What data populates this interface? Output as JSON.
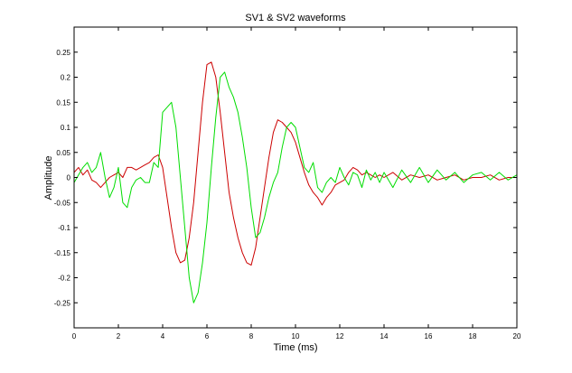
{
  "chart_data": {
    "type": "line",
    "title": "SV1 & SV2 waveforms",
    "xlabel": "Time (ms)",
    "ylabel": "Amplitude",
    "xlim": [
      0,
      20
    ],
    "ylim": [
      -0.3,
      0.3
    ],
    "grid": false,
    "xticks": [
      0,
      2,
      4,
      6,
      8,
      10,
      12,
      14,
      16,
      18,
      20
    ],
    "xtick_labels": [
      "0",
      "2",
      "4",
      "6",
      "8",
      "10",
      "12",
      "14",
      "16",
      "18",
      "20"
    ],
    "yticks": [
      0.25,
      0.2,
      0.15,
      0.1,
      0.05,
      0,
      -0.05,
      -0.1,
      -0.15,
      -0.2,
      -0.25
    ],
    "ytick_labels": [
      "0.25",
      "0.2",
      "0.15",
      "0.1",
      "0.05",
      "0",
      "-0.05",
      "-0.1",
      "-0.15",
      "-0.2",
      "-0.25"
    ],
    "colors": {
      "series_red": "#cc0000",
      "series_green": "#00dd00",
      "axes": "#000000"
    },
    "series": [
      {
        "color": "#cc0000",
        "x": [
          0,
          0.2,
          0.4,
          0.6,
          0.8,
          1.0,
          1.2,
          1.4,
          1.6,
          1.8,
          2.0,
          2.2,
          2.4,
          2.6,
          2.8,
          3.0,
          3.2,
          3.4,
          3.6,
          3.8,
          4.0,
          4.2,
          4.4,
          4.6,
          4.8,
          5.0,
          5.2,
          5.4,
          5.6,
          5.8,
          6.0,
          6.2,
          6.4,
          6.6,
          6.8,
          7.0,
          7.2,
          7.4,
          7.6,
          7.8,
          8.0,
          8.2,
          8.4,
          8.6,
          8.8,
          9.0,
          9.2,
          9.4,
          9.6,
          9.8,
          10.0,
          10.2,
          10.4,
          10.6,
          10.8,
          11.0,
          11.2,
          11.4,
          11.6,
          11.8,
          12.0,
          12.2,
          12.4,
          12.6,
          12.8,
          13.0,
          13.2,
          13.4,
          13.6,
          13.8,
          14.0,
          14.4,
          14.8,
          15.2,
          15.6,
          16.0,
          16.4,
          16.8,
          17.2,
          17.6,
          18.0,
          18.4,
          18.8,
          19.2,
          19.6,
          20.0
        ],
        "y": [
          0.01,
          0.02,
          0.005,
          0.015,
          -0.005,
          -0.01,
          -0.02,
          -0.01,
          0.0,
          0.005,
          0.01,
          0.0,
          0.02,
          0.02,
          0.015,
          0.02,
          0.025,
          0.03,
          0.04,
          0.045,
          0.02,
          -0.04,
          -0.1,
          -0.15,
          -0.17,
          -0.165,
          -0.12,
          -0.05,
          0.05,
          0.15,
          0.225,
          0.23,
          0.2,
          0.13,
          0.05,
          -0.03,
          -0.08,
          -0.12,
          -0.15,
          -0.17,
          -0.175,
          -0.14,
          -0.08,
          -0.02,
          0.04,
          0.09,
          0.115,
          0.11,
          0.1,
          0.09,
          0.07,
          0.04,
          0.01,
          -0.015,
          -0.03,
          -0.04,
          -0.055,
          -0.04,
          -0.03,
          -0.015,
          -0.01,
          -0.005,
          0.01,
          0.02,
          0.015,
          0.005,
          0.01,
          0.005,
          0.0,
          0.005,
          0.0,
          0.01,
          -0.005,
          0.005,
          0.0,
          0.005,
          -0.005,
          0.0,
          0.005,
          -0.005,
          0.0,
          0.0,
          0.005,
          -0.005,
          0.0,
          0.0
        ]
      },
      {
        "color": "#00dd00",
        "x": [
          0,
          0.2,
          0.4,
          0.6,
          0.8,
          1.0,
          1.2,
          1.4,
          1.6,
          1.8,
          2.0,
          2.2,
          2.4,
          2.6,
          2.8,
          3.0,
          3.2,
          3.4,
          3.6,
          3.8,
          4.0,
          4.2,
          4.4,
          4.6,
          4.8,
          5.0,
          5.2,
          5.4,
          5.6,
          5.8,
          6.0,
          6.2,
          6.4,
          6.6,
          6.8,
          7.0,
          7.2,
          7.4,
          7.6,
          7.8,
          8.0,
          8.2,
          8.4,
          8.6,
          8.8,
          9.0,
          9.2,
          9.4,
          9.6,
          9.8,
          10.0,
          10.2,
          10.4,
          10.6,
          10.8,
          11.0,
          11.2,
          11.4,
          11.6,
          11.8,
          12.0,
          12.2,
          12.4,
          12.6,
          12.8,
          13.0,
          13.2,
          13.4,
          13.6,
          13.8,
          14.0,
          14.4,
          14.8,
          15.2,
          15.6,
          16.0,
          16.4,
          16.8,
          17.2,
          17.6,
          18.0,
          18.4,
          18.8,
          19.2,
          19.6,
          20.0
        ],
        "y": [
          -0.01,
          0.005,
          0.02,
          0.03,
          0.01,
          0.02,
          0.05,
          0.0,
          -0.04,
          -0.02,
          0.02,
          -0.05,
          -0.06,
          -0.02,
          -0.005,
          0.0,
          -0.01,
          -0.01,
          0.03,
          0.02,
          0.13,
          0.14,
          0.15,
          0.1,
          0.0,
          -0.1,
          -0.2,
          -0.25,
          -0.23,
          -0.17,
          -0.09,
          0.02,
          0.12,
          0.2,
          0.21,
          0.18,
          0.16,
          0.13,
          0.08,
          0.02,
          -0.06,
          -0.12,
          -0.11,
          -0.08,
          -0.04,
          -0.01,
          0.01,
          0.06,
          0.1,
          0.11,
          0.1,
          0.06,
          0.02,
          0.01,
          0.03,
          -0.02,
          -0.03,
          -0.01,
          0.0,
          -0.01,
          0.02,
          0.0,
          -0.015,
          0.01,
          0.005,
          -0.02,
          0.015,
          -0.005,
          0.01,
          -0.01,
          0.01,
          -0.02,
          0.015,
          -0.01,
          0.02,
          -0.01,
          0.015,
          -0.005,
          0.01,
          -0.01,
          0.005,
          0.01,
          -0.005,
          0.01,
          -0.005,
          0.005
        ]
      }
    ]
  }
}
